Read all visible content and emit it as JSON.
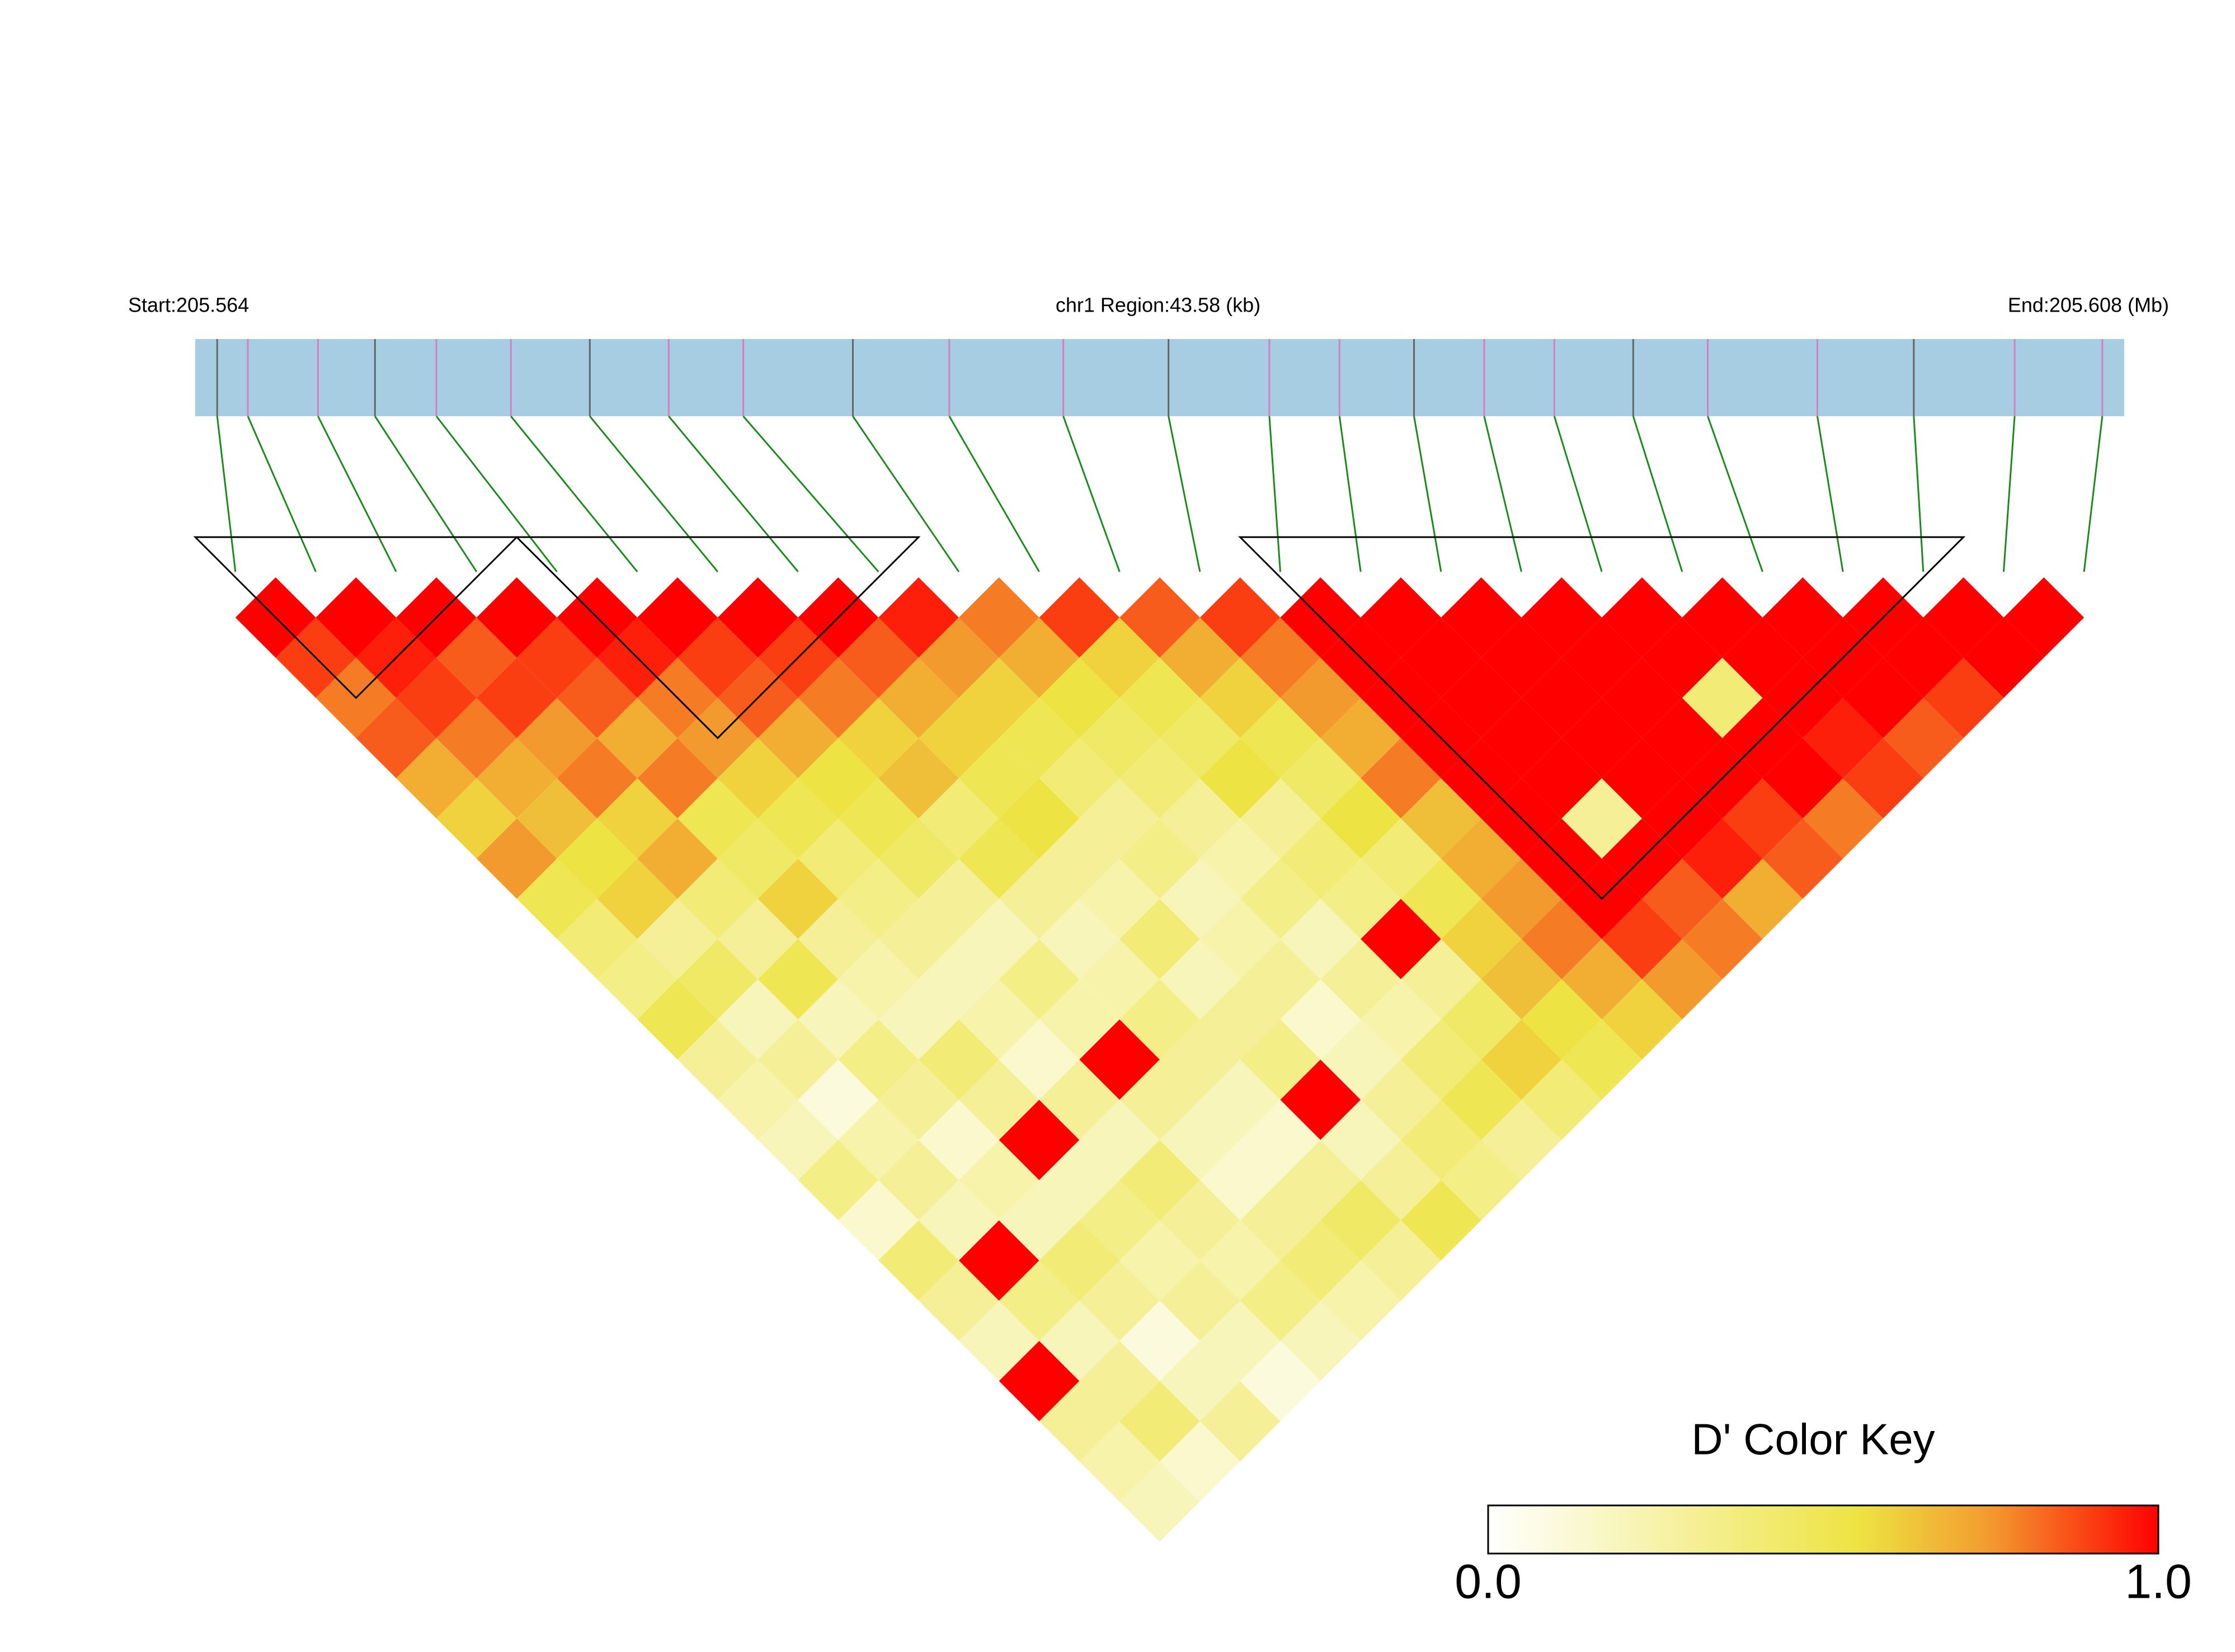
{
  "chart_data": {
    "type": "heatmap",
    "title": "chr1 Region:43.58 (kb)",
    "xlim": [
      205.564,
      205.608
    ],
    "xticks": [
      {
        "value": 205.564,
        "label": "Start:205.564"
      },
      {
        "value": 205.608,
        "label": "End:205.608 (Mb)"
      }
    ],
    "positions": [
      205.5645,
      205.5652,
      205.5668,
      205.5681,
      205.5695,
      205.5712,
      205.573,
      205.5748,
      205.5765,
      205.579,
      205.5812,
      205.5838,
      205.5862,
      205.5885,
      205.5901,
      205.5918,
      205.5934,
      205.595,
      205.5968,
      205.5985,
      205.601,
      205.6032,
      205.6055,
      205.6075
    ],
    "values": [
      [
        1,
        0.9,
        0.8,
        0.85,
        0.7,
        0.6,
        0.75,
        0.5,
        0.4,
        0.35,
        0.5,
        0.3,
        0.25,
        0.2,
        0.35,
        0.15,
        0.4,
        0.3,
        0.2,
        1,
        0.3,
        0.25,
        0.2
      ],
      [
        1,
        0.95,
        0.9,
        0.8,
        0.7,
        0.65,
        0.55,
        0.6,
        0.3,
        0.45,
        0.2,
        0.3,
        0.1,
        0.25,
        0.3,
        0.2,
        1,
        0.35,
        0.2,
        0.3,
        0.4,
        0.15
      ],
      [
        1,
        0.85,
        0.9,
        0.75,
        0.8,
        0.6,
        0.7,
        0.4,
        0.3,
        0.5,
        0.2,
        0.35,
        0.3,
        0.15,
        0.25,
        0.2,
        0.4,
        0.3,
        0.1,
        0.2,
        0.3
      ],
      [
        1,
        0.9,
        0.85,
        0.7,
        0.8,
        0.5,
        0.45,
        0.6,
        0.3,
        0.25,
        0.2,
        0.4,
        0.3,
        1,
        0.2,
        0.35,
        0.25,
        0.3,
        0.2,
        0.1
      ],
      [
        1,
        0.95,
        0.8,
        0.75,
        0.6,
        0.5,
        0.4,
        0.35,
        0.3,
        0.2,
        0.25,
        0.15,
        0.3,
        0.2,
        0.4,
        0.3,
        0.25,
        0.35,
        0.2
      ],
      [
        1,
        0.9,
        0.85,
        0.7,
        0.55,
        0.5,
        0.45,
        0.3,
        0.2,
        0.35,
        0.25,
        1,
        0.3,
        0.2,
        0.15,
        0.3,
        0.4,
        0.25
      ],
      [
        1,
        0.9,
        0.8,
        0.6,
        0.65,
        0.4,
        0.5,
        0.3,
        0.2,
        0.25,
        0.35,
        0.3,
        0.2,
        0.15,
        0.3,
        0.45,
        0.3
      ],
      [
        1,
        0.85,
        0.7,
        0.6,
        0.5,
        0.55,
        0.3,
        0.25,
        0.4,
        0.2,
        0.3,
        0.35,
        1,
        0.2,
        0.3,
        0.5
      ],
      [
        0.95,
        0.75,
        0.6,
        0.5,
        0.4,
        0.3,
        0.35,
        0.2,
        0.25,
        0.3,
        0.15,
        0.2,
        0.3,
        0.4,
        0.35
      ],
      [
        0.8,
        0.7,
        0.55,
        0.45,
        0.4,
        0.3,
        0.25,
        0.35,
        0.2,
        0.3,
        0.25,
        0.4,
        0.5,
        0.3
      ],
      [
        0.9,
        0.6,
        0.5,
        0.45,
        0.55,
        0.3,
        0.4,
        0.35,
        1,
        0.3,
        0.45,
        0.6,
        0.4
      ],
      [
        0.85,
        0.7,
        0.6,
        0.5,
        0.45,
        0.55,
        0.4,
        0.5,
        0.6,
        0.65,
        0.55,
        0.5
      ],
      [
        0.9,
        0.8,
        0.75,
        0.7,
        0.8,
        0.65,
        0.7,
        0.75,
        0.8,
        0.7,
        0.6
      ],
      [
        1,
        1,
        1,
        1,
        1,
        1,
        1,
        1,
        0.9,
        0.75
      ],
      [
        1,
        1,
        1,
        1,
        1,
        0.3,
        1,
        0.85,
        0.8
      ],
      [
        1,
        1,
        1,
        1,
        1,
        1,
        0.95,
        0.7
      ],
      [
        1,
        1,
        1,
        1,
        1,
        0.9,
        0.85
      ],
      [
        1,
        1,
        0.4,
        1,
        1,
        0.8
      ],
      [
        1,
        1,
        1,
        0.95,
        0.9
      ],
      [
        1,
        1,
        1,
        0.85
      ],
      [
        1,
        1,
        0.9
      ],
      [
        1,
        1
      ],
      [
        1
      ]
    ],
    "ld_blocks": [
      [
        0,
        3
      ],
      [
        4,
        8
      ],
      [
        13,
        21
      ]
    ],
    "color_key": {
      "title": "D' Color Key",
      "clim": [
        0,
        1
      ],
      "ticks": [
        {
          "value": 0,
          "label": "0.0"
        },
        {
          "value": 1,
          "label": "1.0"
        }
      ]
    }
  }
}
